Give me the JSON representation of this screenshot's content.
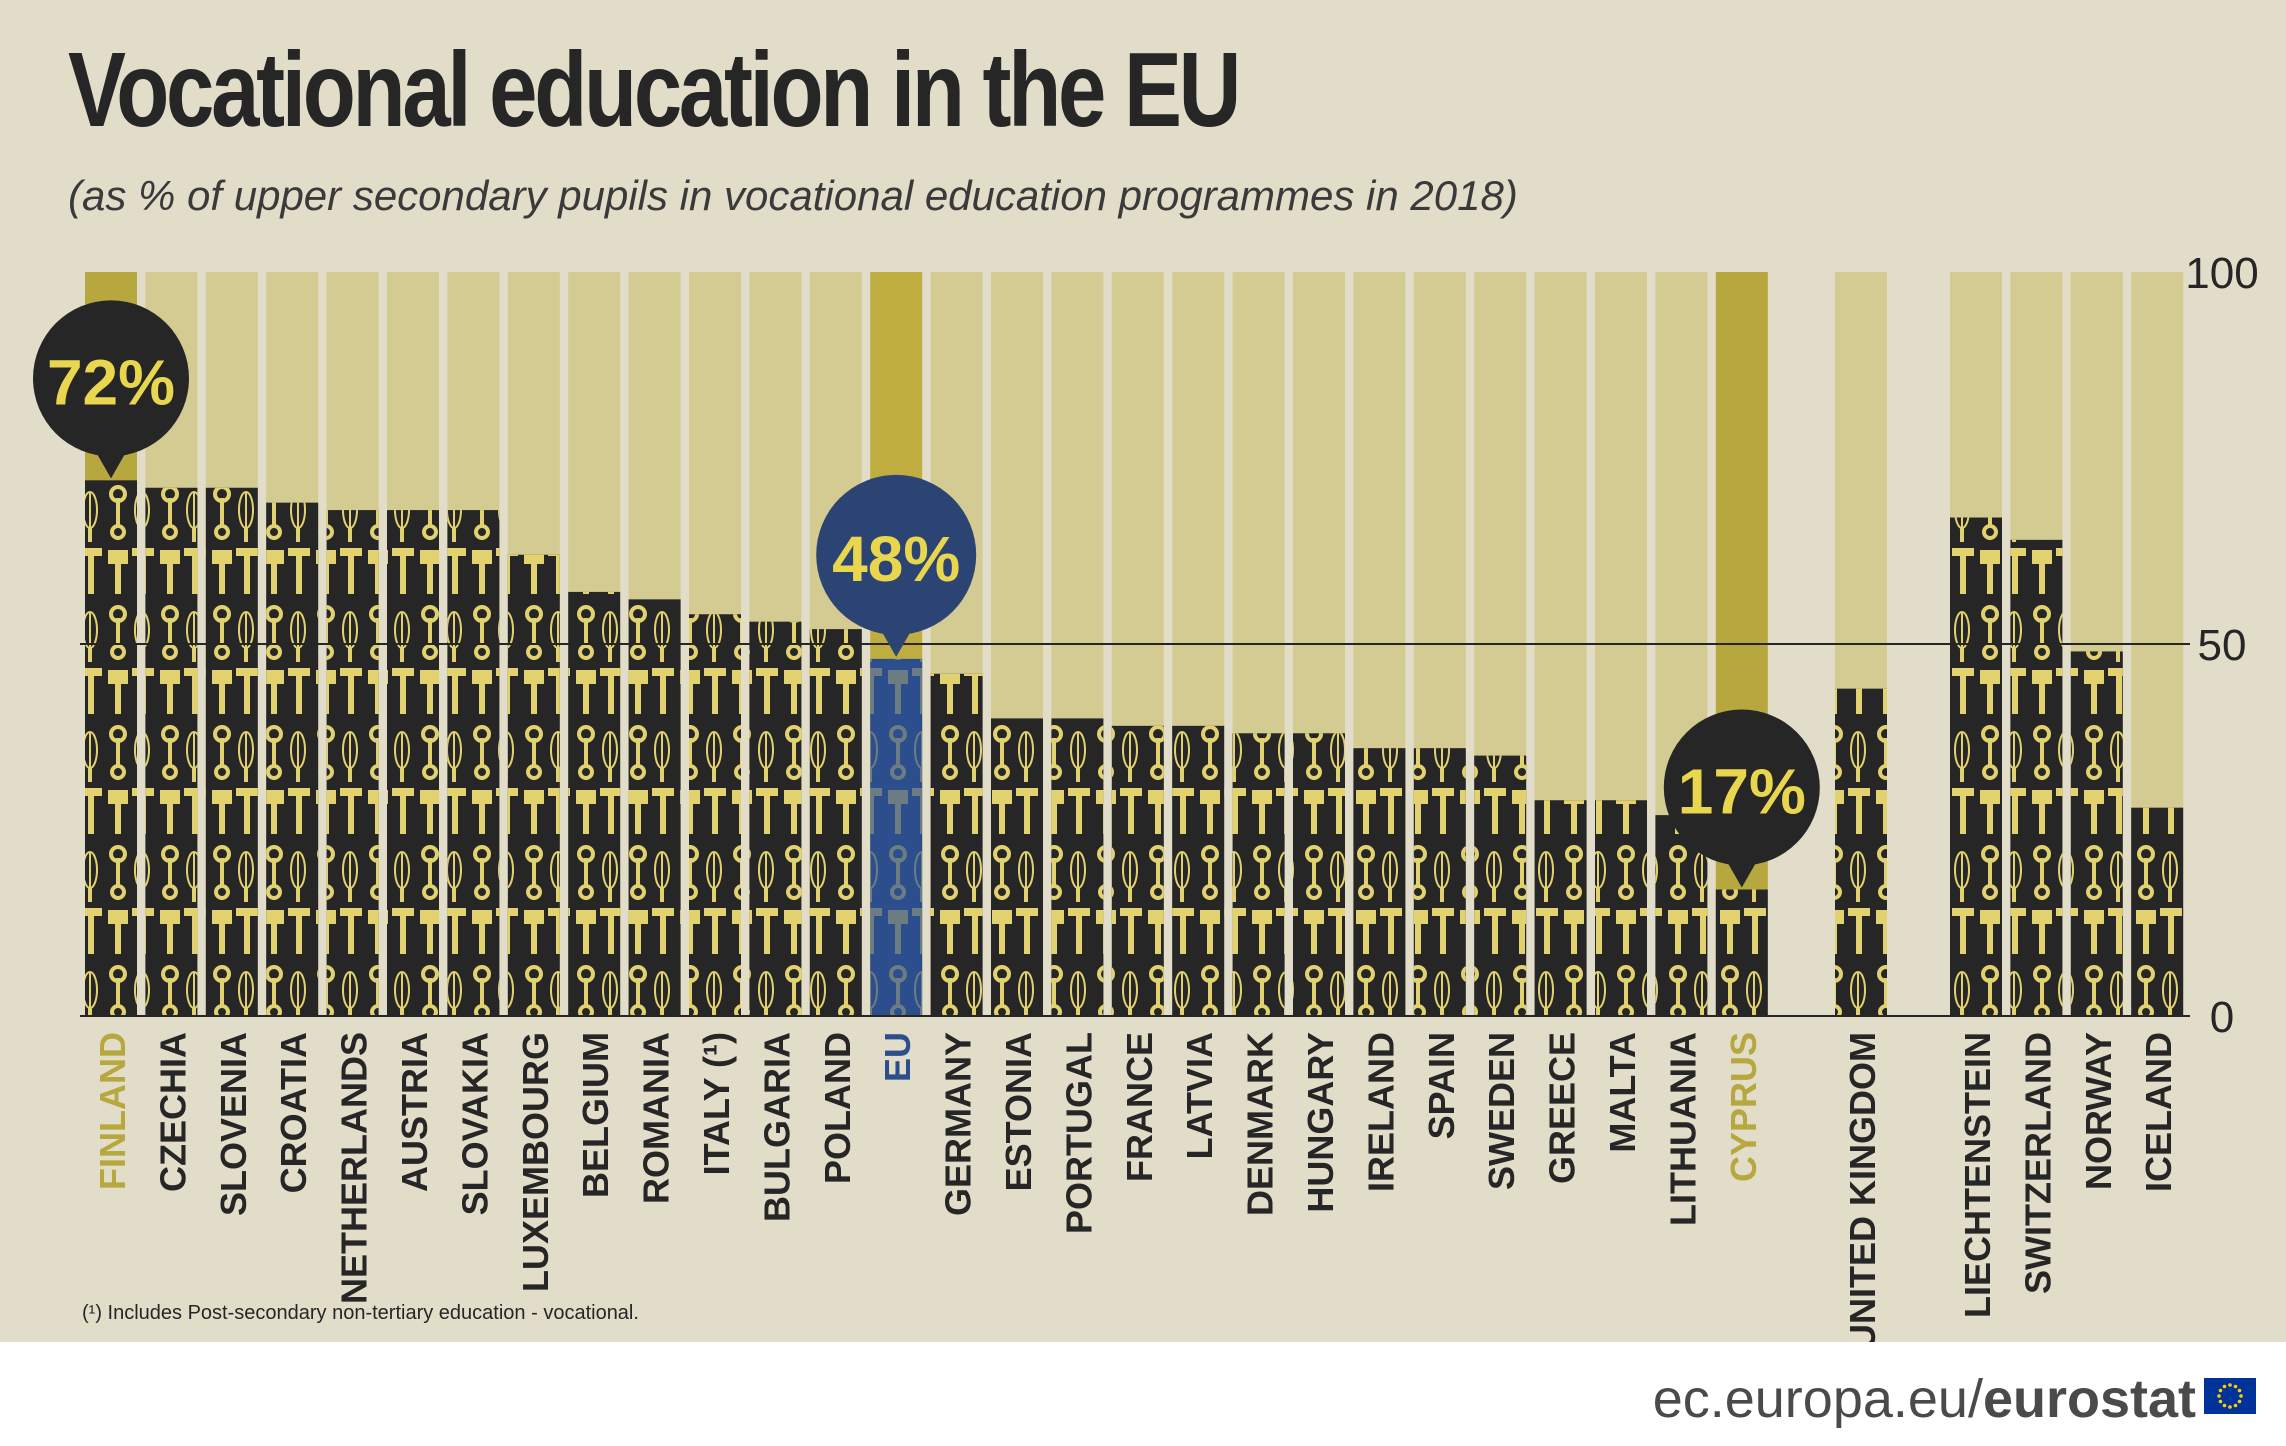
{
  "title": "Vocational education in the EU",
  "subtitle": "(as % of upper secondary pupils in vocational education programmes in 2018)",
  "footnote": "(¹) Includes Post-secondary non-tertiary education - vocational.",
  "source_url": "ec.europa.eu/",
  "source_brand": "eurostat",
  "colors": {
    "background": "#e2ddc8",
    "track": "#d3cb91",
    "bar": "#262626",
    "icon": "#e1d26f",
    "highlight": "#b7a73f",
    "eu_bar": "#2c4e8c",
    "eu_track": "#bfad3f",
    "bubble_dark": "#262626",
    "bubble_eu": "#2c4474",
    "bubble_text": "#e9d64f"
  },
  "icon_names": [
    "wrench-icon",
    "whisk-icon",
    "brush-icon",
    "hammer-icon",
    "pliers-icon",
    "scissors-icon",
    "plug-icon"
  ],
  "chart_data": {
    "type": "bar",
    "title": "Vocational education in the EU",
    "subtitle": "(as % of upper secondary pupils in vocational education programmes in 2018)",
    "ylim": [
      0,
      100
    ],
    "yticks": [
      0,
      50,
      100
    ],
    "gridlines": [
      50
    ],
    "groups": [
      {
        "categories": [
          "FINLAND",
          "CZECHIA",
          "SLOVENIA",
          "CROATIA",
          "NETHERLANDS",
          "AUSTRIA",
          "SLOVAKIA",
          "LUXEMBOURG",
          "BELGIUM",
          "ROMANIA",
          "ITALY (¹)",
          "BULGARIA",
          "POLAND",
          "EU",
          "GERMANY",
          "ESTONIA",
          "PORTUGAL",
          "FRANCE",
          "LATVIA",
          "DENMARK",
          "HUNGARY",
          "IRELAND",
          "SPAIN",
          "SWEDEN",
          "GREECE",
          "MALTA",
          "LITHUANIA",
          "CYPRUS"
        ],
        "values": [
          72,
          71,
          71,
          69,
          68,
          68,
          68,
          62,
          57,
          56,
          54,
          53,
          52,
          48,
          46,
          40,
          40,
          39,
          39,
          38,
          38,
          36,
          36,
          35,
          29,
          29,
          27,
          17
        ]
      },
      {
        "categories": [
          "UNITED KINGDOM"
        ],
        "values": [
          44
        ]
      },
      {
        "categories": [
          "LIECHTENSTEIN",
          "SWITZERLAND",
          "NORWAY",
          "ICELAND"
        ],
        "values": [
          67,
          64,
          49,
          28
        ]
      }
    ],
    "highlights": {
      "FINLAND": "72%",
      "EU": "48%",
      "CYPRUS": "17%"
    }
  }
}
